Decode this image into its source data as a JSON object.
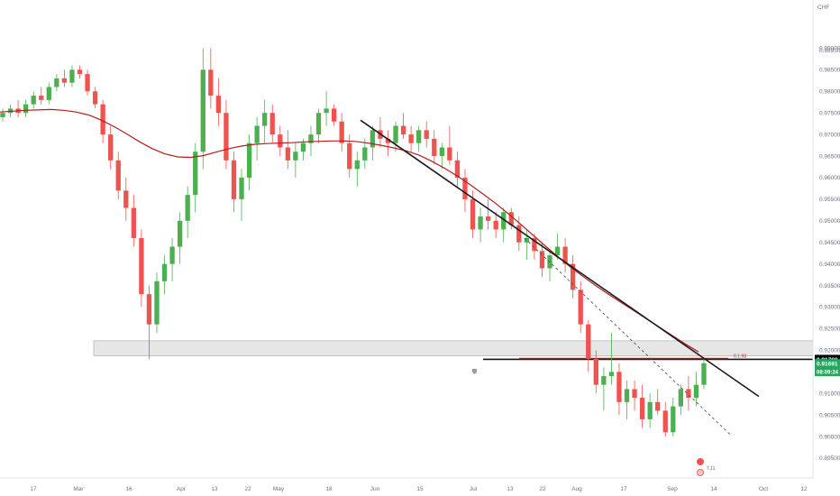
{
  "chart_data": {
    "type": "candlestick",
    "currency": "CHF",
    "y_ticks": [
      0.99,
      0.9895,
      0.985,
      0.98,
      0.975,
      0.97,
      0.965,
      0.96,
      0.955,
      0.95,
      0.945,
      0.94,
      0.935,
      0.93,
      0.925,
      0.92,
      0.915,
      0.91,
      0.905,
      0.9,
      0.895
    ],
    "y_tick_labels": [
      "0.99000",
      "0.98950",
      "0.98500",
      "0.98000",
      "0.97500",
      "0.97000",
      "0.96500",
      "0.96000",
      "0.95500",
      "0.95000",
      "0.94500",
      "0.94000",
      "0.93500",
      "0.93000",
      "0.92500",
      "0.92000",
      "0.91500",
      "0.91000",
      "0.90500",
      "0.90000",
      "0.89500"
    ],
    "ylim": [
      0.8925,
      0.9997
    ],
    "x_ticks": [
      "17",
      "Mar",
      "16",
      "Apr",
      "13",
      "22",
      "May",
      "18",
      "Jun",
      "15",
      "Jul",
      "13",
      "22",
      "Aug",
      "17",
      "Sep",
      "14",
      "Oct",
      "12"
    ],
    "price_tag": {
      "value": "0.91788",
      "color": "#000000"
    },
    "current_tag": {
      "value": "0.91691",
      "countdown": "08:09:24",
      "color": "#26a65b"
    },
    "zone_label": "0.1.93",
    "event_label": "7.11",
    "up_color": "#4caf50",
    "down_color": "#ef5350",
    "ma_color": "#b71c1c",
    "support_zone": [
      0.9187,
      0.9222
    ],
    "horizontal_level": 0.9179,
    "red_level": 0.9181,
    "trendline": {
      "start": [
        "early Jun",
        0.9733
      ],
      "end": [
        "late Sep",
        0.9093
      ]
    },
    "projected_channel_line": {
      "start": [
        "mid Jul",
        0.946
      ],
      "end": [
        "late Sep",
        0.9005
      ]
    },
    "candles": [
      [
        0.974,
        0.976,
        0.973,
        0.975
      ],
      [
        0.975,
        0.977,
        0.974,
        0.976
      ],
      [
        0.976,
        0.978,
        0.974,
        0.975
      ],
      [
        0.975,
        0.978,
        0.974,
        0.977
      ],
      [
        0.977,
        0.98,
        0.976,
        0.979
      ],
      [
        0.979,
        0.981,
        0.977,
        0.978
      ],
      [
        0.978,
        0.982,
        0.977,
        0.981
      ],
      [
        0.981,
        0.984,
        0.98,
        0.983
      ],
      [
        0.983,
        0.985,
        0.981,
        0.982
      ],
      [
        0.982,
        0.986,
        0.981,
        0.985
      ],
      [
        0.985,
        0.986,
        0.983,
        0.984
      ],
      [
        0.984,
        0.985,
        0.979,
        0.98
      ],
      [
        0.98,
        0.981,
        0.976,
        0.977
      ],
      [
        0.977,
        0.978,
        0.968,
        0.97
      ],
      [
        0.97,
        0.972,
        0.962,
        0.964
      ],
      [
        0.964,
        0.966,
        0.955,
        0.957
      ],
      [
        0.957,
        0.96,
        0.95,
        0.953
      ],
      [
        0.953,
        0.956,
        0.944,
        0.946
      ],
      [
        0.946,
        0.948,
        0.93,
        0.933
      ],
      [
        0.933,
        0.935,
        0.918,
        0.926
      ],
      [
        0.926,
        0.938,
        0.924,
        0.936
      ],
      [
        0.936,
        0.942,
        0.933,
        0.94
      ],
      [
        0.94,
        0.946,
        0.936,
        0.944
      ],
      [
        0.944,
        0.952,
        0.94,
        0.95
      ],
      [
        0.95,
        0.958,
        0.946,
        0.956
      ],
      [
        0.956,
        0.968,
        0.952,
        0.966
      ],
      [
        0.966,
        0.99,
        0.962,
        0.985
      ],
      [
        0.985,
        0.99,
        0.976,
        0.979
      ],
      [
        0.979,
        0.983,
        0.972,
        0.975
      ],
      [
        0.975,
        0.978,
        0.962,
        0.964
      ],
      [
        0.964,
        0.966,
        0.952,
        0.955
      ],
      [
        0.955,
        0.962,
        0.95,
        0.96
      ],
      [
        0.96,
        0.97,
        0.957,
        0.968
      ],
      [
        0.968,
        0.974,
        0.964,
        0.972
      ],
      [
        0.972,
        0.978,
        0.968,
        0.975
      ],
      [
        0.975,
        0.977,
        0.968,
        0.97
      ],
      [
        0.97,
        0.972,
        0.965,
        0.967
      ],
      [
        0.967,
        0.971,
        0.962,
        0.964
      ],
      [
        0.964,
        0.968,
        0.96,
        0.966
      ],
      [
        0.966,
        0.969,
        0.964,
        0.968
      ],
      [
        0.968,
        0.972,
        0.965,
        0.97
      ],
      [
        0.97,
        0.976,
        0.968,
        0.975
      ],
      [
        0.975,
        0.98,
        0.972,
        0.976
      ],
      [
        0.976,
        0.977,
        0.972,
        0.973
      ],
      [
        0.973,
        0.975,
        0.966,
        0.968
      ],
      [
        0.968,
        0.97,
        0.96,
        0.962
      ],
      [
        0.962,
        0.966,
        0.958,
        0.964
      ],
      [
        0.964,
        0.969,
        0.962,
        0.967
      ],
      [
        0.967,
        0.972,
        0.964,
        0.971
      ],
      [
        0.971,
        0.974,
        0.967,
        0.969
      ],
      [
        0.969,
        0.971,
        0.965,
        0.968
      ],
      [
        0.968,
        0.973,
        0.966,
        0.972
      ],
      [
        0.972,
        0.975,
        0.969,
        0.97
      ],
      [
        0.97,
        0.972,
        0.966,
        0.968
      ],
      [
        0.968,
        0.972,
        0.966,
        0.971
      ],
      [
        0.971,
        0.973,
        0.967,
        0.969
      ],
      [
        0.969,
        0.971,
        0.963,
        0.965
      ],
      [
        0.965,
        0.968,
        0.962,
        0.967
      ],
      [
        0.967,
        0.972,
        0.963,
        0.964
      ],
      [
        0.964,
        0.966,
        0.958,
        0.96
      ],
      [
        0.96,
        0.962,
        0.952,
        0.955
      ],
      [
        0.955,
        0.957,
        0.946,
        0.948
      ],
      [
        0.948,
        0.953,
        0.945,
        0.951
      ],
      [
        0.951,
        0.955,
        0.948,
        0.95
      ],
      [
        0.95,
        0.952,
        0.946,
        0.948
      ],
      [
        0.948,
        0.953,
        0.945,
        0.952
      ],
      [
        0.952,
        0.953,
        0.948,
        0.949
      ],
      [
        0.949,
        0.951,
        0.943,
        0.945
      ],
      [
        0.945,
        0.948,
        0.941,
        0.946
      ],
      [
        0.946,
        0.947,
        0.941,
        0.943
      ],
      [
        0.943,
        0.945,
        0.937,
        0.939
      ],
      [
        0.939,
        0.943,
        0.936,
        0.942
      ],
      [
        0.942,
        0.947,
        0.941,
        0.944
      ],
      [
        0.944,
        0.946,
        0.938,
        0.94
      ],
      [
        0.94,
        0.942,
        0.932,
        0.934
      ],
      [
        0.934,
        0.936,
        0.924,
        0.926
      ],
      [
        0.926,
        0.927,
        0.915,
        0.918
      ],
      [
        0.918,
        0.92,
        0.91,
        0.912
      ],
      [
        0.912,
        0.916,
        0.906,
        0.914
      ],
      [
        0.914,
        0.924,
        0.912,
        0.915
      ],
      [
        0.915,
        0.917,
        0.905,
        0.908
      ],
      [
        0.908,
        0.913,
        0.904,
        0.911
      ],
      [
        0.911,
        0.913,
        0.906,
        0.909
      ],
      [
        0.909,
        0.912,
        0.902,
        0.904
      ],
      [
        0.904,
        0.91,
        0.902,
        0.908
      ],
      [
        0.908,
        0.911,
        0.905,
        0.906
      ],
      [
        0.906,
        0.908,
        0.9,
        0.901
      ],
      [
        0.901,
        0.909,
        0.9,
        0.907
      ],
      [
        0.907,
        0.912,
        0.905,
        0.911
      ],
      [
        0.911,
        0.914,
        0.906,
        0.909
      ],
      [
        0.909,
        0.915,
        0.907,
        0.912
      ],
      [
        0.912,
        0.918,
        0.911,
        0.917
      ]
    ],
    "ma_series": [
      0.9752,
      0.9754,
      0.9756,
      0.9757,
      0.9758,
      0.9756,
      0.9752,
      0.9745,
      0.9733,
      0.9718,
      0.9701,
      0.9683,
      0.9667,
      0.9655,
      0.9648,
      0.9647,
      0.9651,
      0.9659,
      0.9667,
      0.9673,
      0.9677,
      0.9679,
      0.968,
      0.9681,
      0.9683,
      0.9684,
      0.9685,
      0.9685,
      0.9684,
      0.968,
      0.9675,
      0.9669,
      0.9662,
      0.9652,
      0.9638,
      0.9622,
      0.9604,
      0.9584,
      0.9563,
      0.9541,
      0.9517,
      0.9492,
      0.9466,
      0.944,
      0.9415,
      0.9391,
      0.9369,
      0.9348,
      0.9328,
      0.9309,
      0.929,
      0.9271,
      0.9252,
      0.9233,
      0.9214,
      0.9196
    ]
  }
}
